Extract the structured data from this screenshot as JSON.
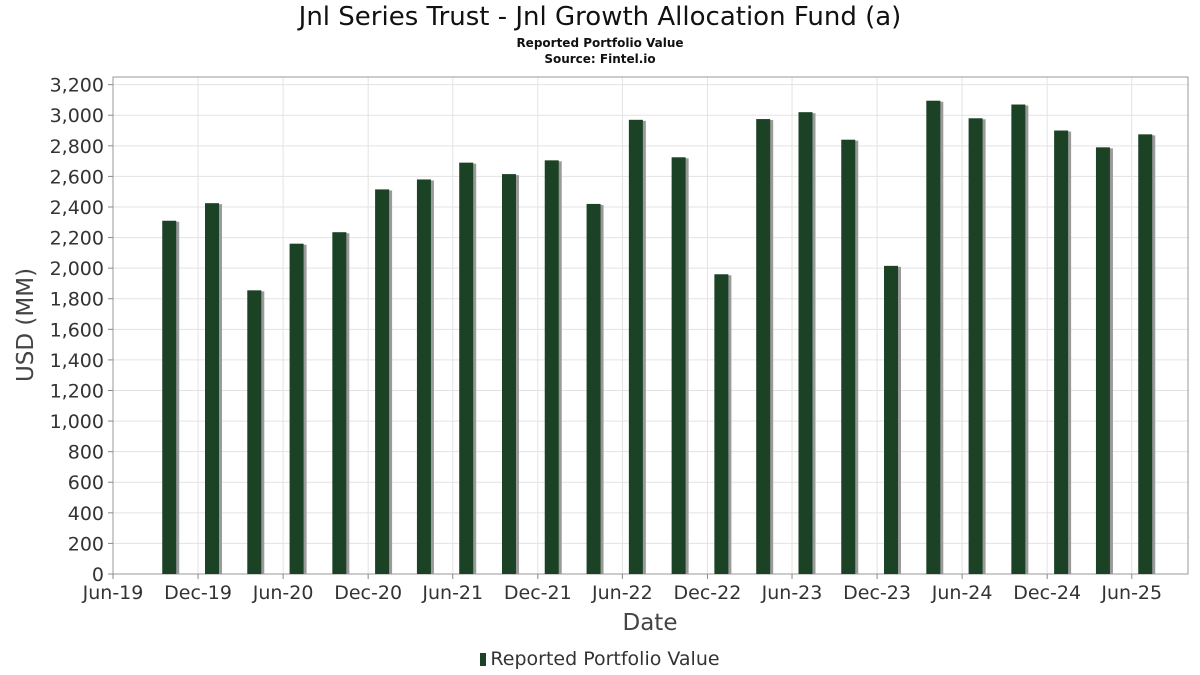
{
  "title": "Jnl Series Trust - Jnl Growth Allocation Fund (a)",
  "subtitle": "Reported Portfolio Value",
  "source": "Source: Fintel.io",
  "colors": {
    "bar": "#1b4224",
    "bar_shadow": "#9a9a9a",
    "grid": "#e3e3e3",
    "frame": "#999999"
  },
  "chart_data": {
    "type": "bar",
    "title": "Jnl Series Trust - Jnl Growth Allocation Fund (a)",
    "xlabel": "Date",
    "ylabel": "USD (MM)",
    "ylim": [
      0,
      3250
    ],
    "yticks": [
      0,
      200,
      400,
      600,
      800,
      1000,
      1200,
      1400,
      1600,
      1800,
      2000,
      2200,
      2400,
      2600,
      2800,
      3000,
      3200
    ],
    "ytick_labels": [
      "0",
      "200",
      "400",
      "600",
      "800",
      "1,000",
      "1,200",
      "1,400",
      "1,600",
      "1,800",
      "2,000",
      "2,200",
      "2,400",
      "2,600",
      "2,800",
      "3,000",
      "3,200"
    ],
    "xlim": [
      "2019-06-01",
      "2025-09-30"
    ],
    "xticks": [
      "2019-06-01",
      "2019-12-01",
      "2020-06-01",
      "2020-12-01",
      "2021-06-01",
      "2021-12-01",
      "2022-06-01",
      "2022-12-01",
      "2023-06-01",
      "2023-12-01",
      "2024-06-01",
      "2024-12-01",
      "2025-06-01"
    ],
    "xtick_labels": [
      "Jun-19",
      "Dec-19",
      "Jun-20",
      "Dec-20",
      "Jun-21",
      "Dec-21",
      "Jun-22",
      "Dec-22",
      "Jun-23",
      "Dec-23",
      "Jun-24",
      "Dec-24",
      "Jun-25"
    ],
    "grid": true,
    "legend_position": "bottom",
    "series": [
      {
        "name": "Reported Portfolio Value",
        "x": [
          "2019-09-30",
          "2019-12-31",
          "2020-03-31",
          "2020-06-30",
          "2020-09-30",
          "2020-12-31",
          "2021-03-31",
          "2021-06-30",
          "2021-09-30",
          "2021-12-31",
          "2022-03-31",
          "2022-06-30",
          "2022-09-30",
          "2022-12-31",
          "2023-03-31",
          "2023-06-30",
          "2023-09-30",
          "2023-12-31",
          "2024-03-31",
          "2024-06-30",
          "2024-09-30",
          "2024-12-31",
          "2025-03-31",
          "2025-06-30"
        ],
        "values": [
          2310,
          2425,
          1855,
          2160,
          2235,
          2515,
          2580,
          2690,
          2615,
          2705,
          2420,
          2970,
          2725,
          1960,
          2975,
          3020,
          2840,
          2015,
          3095,
          2980,
          3070,
          2900,
          2790,
          2875
        ]
      }
    ]
  }
}
